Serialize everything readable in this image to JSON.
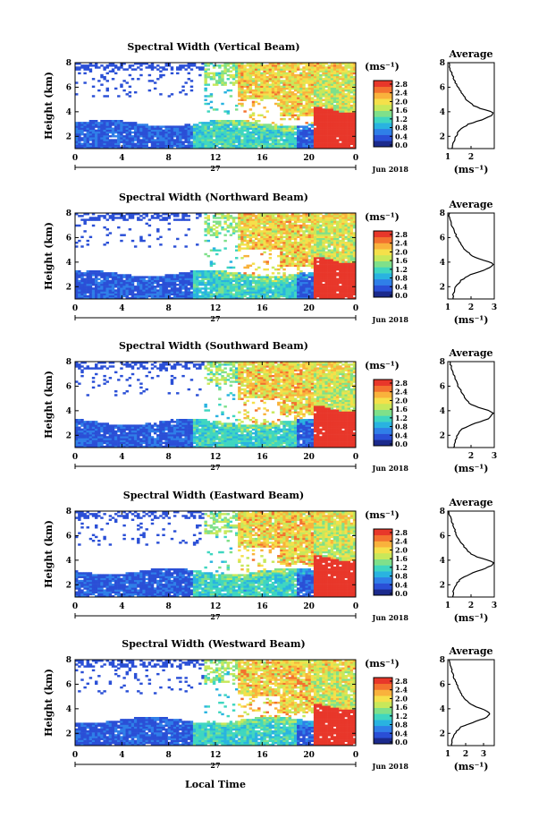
{
  "chart_data": {
    "type": "heatmap",
    "date_label": "Jun 2018",
    "day_label": "27",
    "xlabel": "Local Time",
    "ylabel": "Height (km)",
    "x_ticks": [
      "0",
      "4",
      "8",
      "12",
      "16",
      "20",
      "0"
    ],
    "xlim_hours": [
      0,
      24
    ],
    "ylim_km": [
      1,
      8
    ],
    "y_ticks": [
      "2",
      "4",
      "6",
      "8"
    ],
    "colorbar": {
      "unit": "(ms⁻¹)",
      "range": [
        0,
        2.8
      ],
      "ticks": [
        "2.8",
        "2.4",
        "2.0",
        "1.6",
        "1.2",
        "0.8",
        "0.4",
        "0.0"
      ],
      "colors": [
        "#1b2a8c",
        "#2a4fd6",
        "#2f7fe8",
        "#29b3e0",
        "#3fd6c0",
        "#7fe08a",
        "#c8e85a",
        "#f5e04a",
        "#f9b23c",
        "#f3722f",
        "#e8372a"
      ]
    },
    "panels": [
      {
        "title": "Spectral Width (Vertical Beam)",
        "average_title": "Average",
        "average_unit": "(ms⁻¹)",
        "average_x_ticks": [
          "1",
          "2"
        ],
        "average_xlim": [
          1,
          3
        ],
        "average_profile": {
          "height": [
            1.0,
            1.5,
            2.0,
            2.5,
            3.0,
            3.3,
            3.6,
            3.8,
            4.0,
            4.2,
            4.5,
            5.0,
            5.5,
            6.0,
            6.5,
            7.0,
            7.5,
            8.0
          ],
          "value": [
            1.2,
            1.25,
            1.35,
            1.5,
            1.9,
            2.4,
            2.8,
            2.95,
            2.9,
            2.5,
            2.1,
            1.8,
            1.6,
            1.45,
            1.3,
            1.2,
            1.1,
            1.05
          ]
        }
      },
      {
        "title": "Spectral Width (Northward Beam)",
        "average_title": "Average",
        "average_unit": "(ms⁻¹)",
        "average_x_ticks": [
          "1",
          "2",
          "3"
        ],
        "average_xlim": [
          1,
          3
        ],
        "average_profile": {
          "height": [
            1.0,
            1.5,
            2.0,
            2.5,
            3.0,
            3.3,
            3.6,
            3.8,
            4.0,
            4.2,
            4.5,
            5.0,
            5.5,
            6.0,
            6.5,
            7.0,
            7.5,
            8.0
          ],
          "value": [
            1.2,
            1.25,
            1.35,
            1.55,
            2.0,
            2.5,
            2.85,
            2.95,
            2.85,
            2.45,
            2.05,
            1.75,
            1.55,
            1.4,
            1.28,
            1.18,
            1.1,
            1.05
          ]
        }
      },
      {
        "title": "Spectral Width (Southward Beam)",
        "average_title": "Average",
        "average_unit": "(ms⁻¹)",
        "average_x_ticks": [
          "2",
          "3"
        ],
        "average_xlim": [
          1,
          3
        ],
        "average_profile": {
          "height": [
            1.0,
            1.5,
            2.0,
            2.5,
            3.0,
            3.3,
            3.6,
            3.8,
            4.0,
            4.2,
            4.5,
            5.0,
            5.5,
            6.0,
            6.5,
            7.0,
            7.5,
            8.0
          ],
          "value": [
            1.25,
            1.3,
            1.4,
            1.6,
            2.2,
            2.7,
            2.9,
            2.95,
            2.8,
            2.4,
            2.0,
            1.75,
            1.6,
            1.45,
            1.35,
            1.25,
            1.15,
            1.1
          ]
        }
      },
      {
        "title": "Spectral Width (Eastward Beam)",
        "average_title": "Average",
        "average_unit": "(ms⁻¹)",
        "average_x_ticks": [
          "1",
          "2",
          "3"
        ],
        "average_xlim": [
          1,
          3
        ],
        "average_profile": {
          "height": [
            1.0,
            1.5,
            2.0,
            2.5,
            3.0,
            3.3,
            3.6,
            3.8,
            4.0,
            4.2,
            4.5,
            5.0,
            5.5,
            6.0,
            6.5,
            7.0,
            7.5,
            8.0
          ],
          "value": [
            1.2,
            1.25,
            1.35,
            1.55,
            2.1,
            2.6,
            2.9,
            2.95,
            2.75,
            2.35,
            2.0,
            1.75,
            1.55,
            1.4,
            1.3,
            1.2,
            1.1,
            1.05
          ]
        }
      },
      {
        "title": "Spectral Width (Westward Beam)",
        "average_title": "Average",
        "average_unit": "(ms⁻¹)",
        "average_x_ticks": [
          "1",
          "2",
          "3"
        ],
        "average_xlim": [
          1,
          3.6
        ],
        "average_profile": {
          "height": [
            1.0,
            1.5,
            2.0,
            2.5,
            3.0,
            3.3,
            3.6,
            3.8,
            4.0,
            4.2,
            4.5,
            5.0,
            5.5,
            6.0,
            6.5,
            7.0,
            7.5,
            8.0
          ],
          "value": [
            1.2,
            1.25,
            1.4,
            1.7,
            2.6,
            3.2,
            3.35,
            3.2,
            2.9,
            2.5,
            2.15,
            1.85,
            1.65,
            1.5,
            1.35,
            1.25,
            1.15,
            1.1
          ]
        }
      }
    ]
  }
}
